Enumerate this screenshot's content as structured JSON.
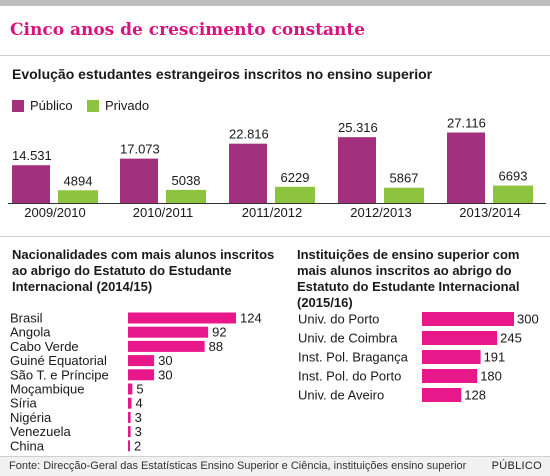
{
  "headline": "Cinco anos de crescimento constante",
  "footer": {
    "source": "Fonte: Direcção-Geral das Estatísticas Ensino Superior e Ciência, instituições ensino superior",
    "brand": "PÚBLICO"
  },
  "colors": {
    "publico": "#a3307c",
    "privado": "#8dc43f",
    "highlight": "#e8178a",
    "headline": "#d8137e"
  },
  "chart_data": [
    {
      "type": "bar",
      "title": "Evolução estudantes estrangeiros inscritos no ensino superior",
      "categories": [
        "2009/2010",
        "2010/2011",
        "2011/2012",
        "2012/2013",
        "2013/2014"
      ],
      "series": [
        {
          "name": "Público",
          "values": [
            14531,
            17073,
            22816,
            25316,
            27116
          ],
          "labels": [
            "14.531",
            "17.073",
            "22.816",
            "25.316",
            "27.116"
          ]
        },
        {
          "name": "Privado",
          "values": [
            4894,
            5038,
            6229,
            5867,
            6693
          ],
          "labels": [
            "4894",
            "5038",
            "6229",
            "5867",
            "6693"
          ]
        }
      ],
      "legend": "top-left"
    },
    {
      "type": "bar",
      "orientation": "horizontal",
      "title": "Nacionalidades com mais alunos inscritos ao abrigo do Estatuto do Estudante Internacional (2014/15)",
      "categories": [
        "Brasil",
        "Angola",
        "Cabo Verde",
        "Guiné Equatorial",
        "São T. e Príncipe",
        "Moçambique",
        "Síria",
        "Nigéria",
        "Venezuela",
        "China"
      ],
      "values": [
        124,
        92,
        88,
        30,
        30,
        5,
        4,
        3,
        3,
        2
      ]
    },
    {
      "type": "bar",
      "orientation": "horizontal",
      "title": "Instituições de ensino superior com mais alunos inscritos ao abrigo do Estatuto do Estudante Internacional (2015/16)",
      "categories": [
        "Univ. do Porto",
        "Univ. de Coimbra",
        "Inst. Pol. Bragança",
        "Inst. Pol. do Porto",
        "Univ. de Aveiro"
      ],
      "values": [
        300,
        245,
        191,
        180,
        128
      ]
    }
  ]
}
